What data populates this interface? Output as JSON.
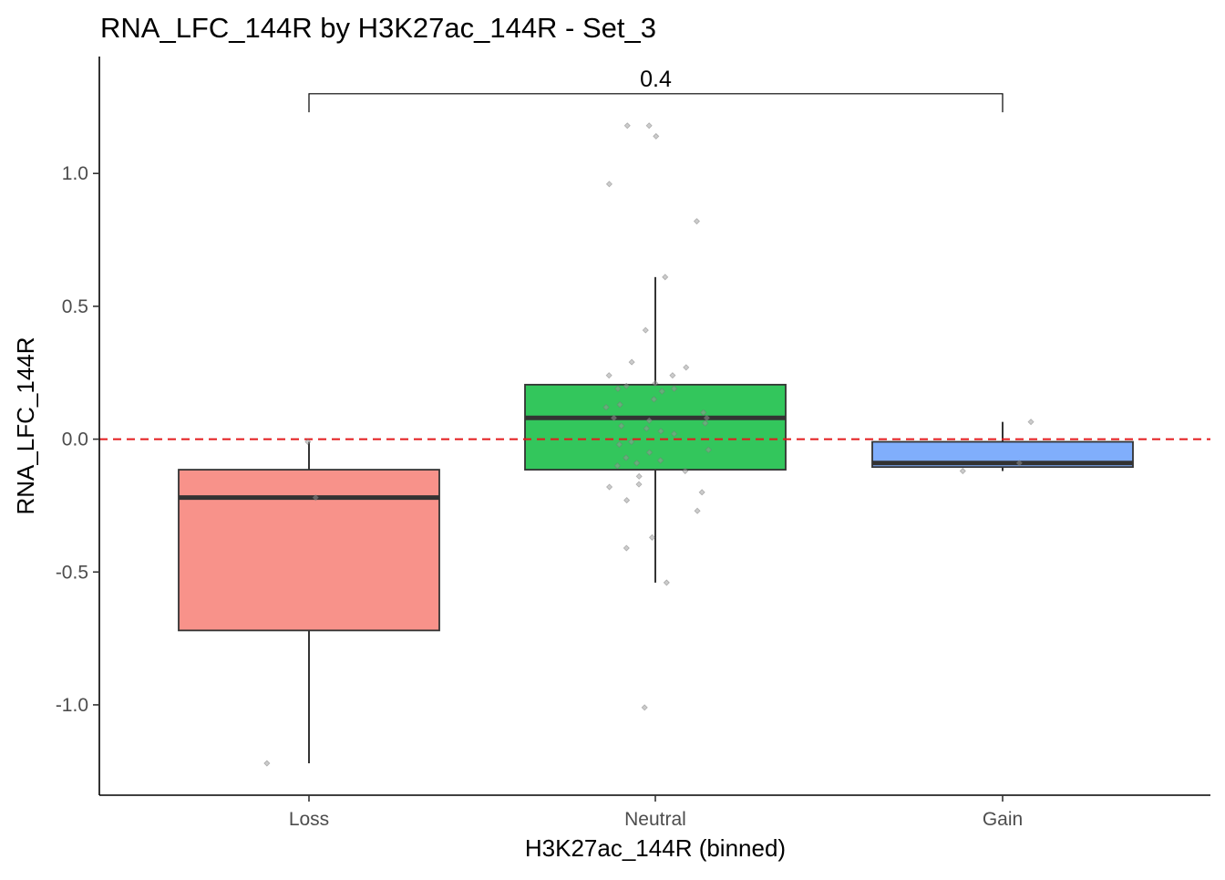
{
  "chart_data": {
    "type": "boxplot",
    "title": "RNA_LFC_144R by H3K27ac_144R - Set_3",
    "xlabel": "H3K27ac_144R (binned)",
    "ylabel": "RNA_LFC_144R",
    "ylim": [
      -1.34,
      1.44
    ],
    "yticks": [
      -1.0,
      -0.5,
      0.0,
      0.5,
      1.0
    ],
    "ytick_labels": [
      "-1.0",
      "-0.5",
      "0.0",
      "0.5",
      "1.0"
    ],
    "categories": [
      "Loss",
      "Neutral",
      "Gain"
    ],
    "reference_line": {
      "y": 0.0,
      "color": "#e41a1c",
      "style": "dashed"
    },
    "boxes": [
      {
        "category": "Loss",
        "color": "#f8928a",
        "lower_whisker": -1.22,
        "q1": -0.72,
        "median": -0.22,
        "q3": -0.115,
        "upper_whisker": -0.01
      },
      {
        "category": "Neutral",
        "color": "#33c65c",
        "lower_whisker": -0.54,
        "q1": -0.115,
        "median": 0.08,
        "q3": 0.205,
        "upper_whisker": 0.61
      },
      {
        "category": "Gain",
        "color": "#80aefc",
        "lower_whisker": -0.12,
        "q1": -0.105,
        "median": -0.09,
        "q3": -0.01,
        "upper_whisker": 0.065
      }
    ],
    "points": [
      {
        "category": "Loss",
        "values": [
          -0.01,
          -0.22,
          -1.22
        ]
      },
      {
        "category": "Neutral",
        "values": [
          1.18,
          1.18,
          1.14,
          0.96,
          0.82,
          0.61,
          0.41,
          0.29,
          0.27,
          0.24,
          0.24,
          0.21,
          0.2,
          0.19,
          0.19,
          0.18,
          0.15,
          0.13,
          0.12,
          0.1,
          0.08,
          0.08,
          0.07,
          0.06,
          0.05,
          0.04,
          0.03,
          0.02,
          -0.01,
          -0.02,
          -0.04,
          -0.05,
          -0.07,
          -0.08,
          -0.09,
          -0.1,
          -0.12,
          -0.14,
          -0.17,
          -0.18,
          -0.2,
          -0.23,
          -0.27,
          -0.37,
          -0.41,
          -0.54,
          -1.01
        ]
      },
      {
        "category": "Gain",
        "values": [
          0.065,
          -0.09,
          -0.12
        ]
      }
    ],
    "significance": {
      "label": "0.4",
      "from": "Loss",
      "to": "Gain",
      "y": 1.3,
      "y_low": 1.23
    },
    "grid": false,
    "legend": "none"
  }
}
